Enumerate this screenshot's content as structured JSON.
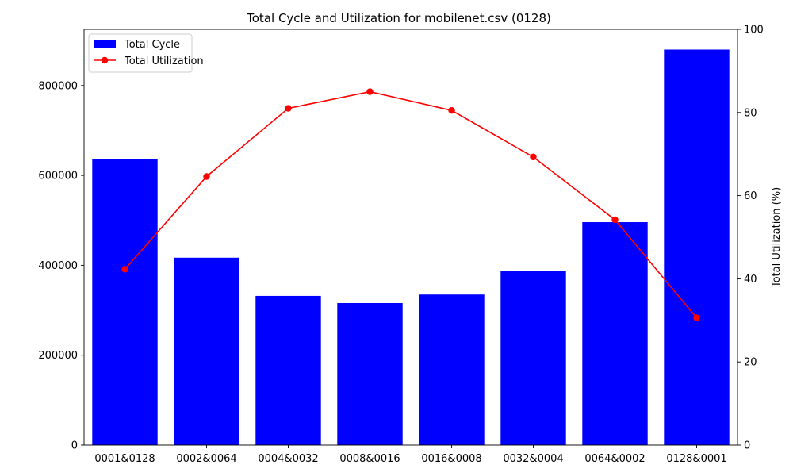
{
  "chart_data": {
    "type": "bar+line",
    "title": "Total Cycle and Utilization for mobilenet.csv (0128)",
    "xlabel": "",
    "categories": [
      "0001&0128",
      "0002&0064",
      "0004&0032",
      "0008&0016",
      "0016&0008",
      "0032&0004",
      "0064&0002",
      "0128&0001"
    ],
    "series": [
      {
        "name": "Total Cycle",
        "type": "bar",
        "axis": "left",
        "color": "#0000ff",
        "values": [
          637000,
          417000,
          332000,
          316000,
          335000,
          388000,
          496000,
          880000
        ]
      },
      {
        "name": "Total Utilization",
        "type": "line",
        "axis": "right",
        "color": "#ff0000",
        "marker": "circle",
        "values": [
          42.3,
          64.6,
          81.0,
          85.0,
          80.5,
          69.3,
          54.2,
          30.6
        ]
      }
    ],
    "y_left": {
      "label": "",
      "ylim": [
        0,
        925000
      ],
      "ticks": [
        0,
        200000,
        400000,
        600000,
        800000
      ],
      "tick_labels": [
        "0",
        "200000",
        "400000",
        "600000",
        "800000"
      ]
    },
    "y_right": {
      "label": "Total Utilization (%)",
      "ylim": [
        0,
        100
      ],
      "ticks": [
        0,
        20,
        40,
        60,
        80,
        100
      ],
      "tick_labels": [
        "0",
        "20",
        "40",
        "60",
        "80",
        "100"
      ]
    },
    "grid": false,
    "legend": {
      "position": "top-left",
      "entries": [
        "Total Cycle",
        "Total Utilization"
      ]
    }
  }
}
